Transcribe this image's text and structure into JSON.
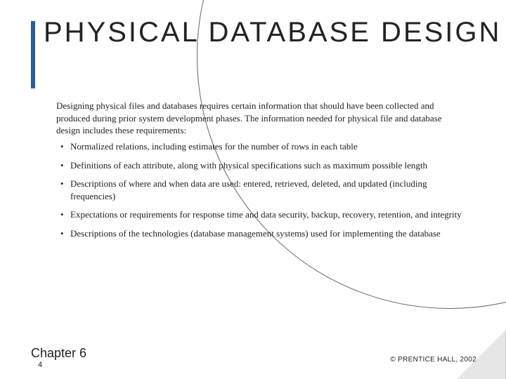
{
  "title": "PHYSICAL DATABASE DESIGN",
  "intro": "Designing physical files and databases requires certain information that should have been collected and produced during prior system development phases. The information needed for physical file and database design includes these requirements:",
  "bullets": [
    "Normalized relations, including estimates for the number of rows in each table",
    "Definitions of each attribute, along with physical specifications such as maximum possible length",
    "Descriptions of where and when data are used: entered, retrieved, deleted, and updated (including frequencies)",
    "Expectations or requirements for response time and data security, backup, recovery, retention, and integrity",
    "Descriptions of the technologies (database management systems) used for implementing the database"
  ],
  "chapter": "Chapter 6",
  "page_num": "4",
  "copyright": "© PRENTICE HALL, 2002",
  "colors": {
    "accent": "#2a6099",
    "text": "#222222",
    "background": "#ffffff",
    "fold": "#e6e6e6"
  },
  "typography": {
    "title_fontsize": 40,
    "title_letterspacing": 3,
    "body_fontsize": 13,
    "body_family": "Georgia, Times New Roman, serif",
    "chapter_fontsize": 18,
    "copyright_fontsize": 10
  }
}
